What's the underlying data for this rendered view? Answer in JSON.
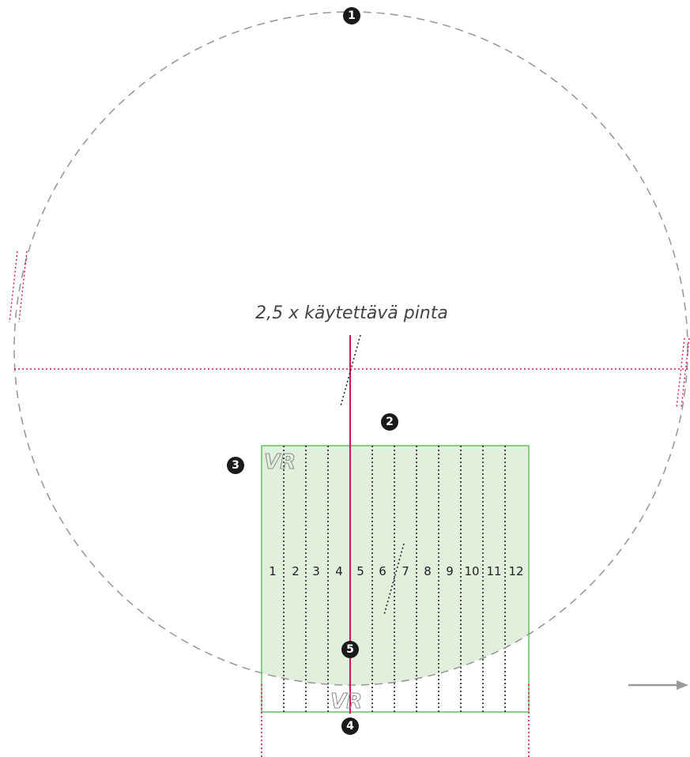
{
  "caption": "2,5 x käytettävä pinta",
  "markers": [
    "1",
    "2",
    "3",
    "4",
    "5"
  ],
  "columns": [
    "1",
    "2",
    "3",
    "4",
    "5",
    "6",
    "7",
    "8",
    "9",
    "10",
    "11",
    "12"
  ],
  "logo_text": "VR",
  "colors": {
    "circle": "#9a9a9a",
    "guide": "#d4145a",
    "area_fill": "#e1f0dc",
    "area_stroke": "#4cb84c",
    "column_lines": "#222222",
    "arrow": "#9a9a9a",
    "badge": "#1a1a1a"
  }
}
